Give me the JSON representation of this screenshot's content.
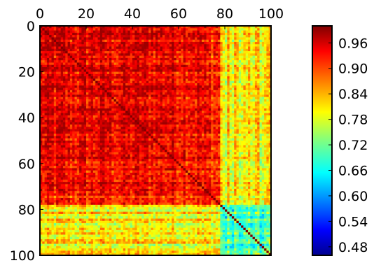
{
  "chart_data": {
    "type": "heatmap",
    "title": "",
    "xlabel": "",
    "ylabel": "",
    "x_range": [
      0,
      100
    ],
    "y_range": [
      0,
      100
    ],
    "x_tick_labels": [
      "0",
      "20",
      "40",
      "60",
      "80",
      "100"
    ],
    "x_tick_values": [
      0,
      20,
      40,
      60,
      80,
      100
    ],
    "y_tick_labels": [
      "0",
      "20",
      "40",
      "60",
      "80",
      "100"
    ],
    "y_tick_values": [
      0,
      20,
      40,
      60,
      80,
      100
    ],
    "x_axis_position": "top",
    "y_axis_inverted": true,
    "matrix_size": 100,
    "diagonal_value": 1.0,
    "value_range": [
      0.46,
      1.0
    ],
    "colormap": "jet",
    "colorbar": {
      "position": "right",
      "tick_labels": [
        "0.96",
        "0.90",
        "0.84",
        "0.78",
        "0.72",
        "0.66",
        "0.60",
        "0.54",
        "0.48"
      ],
      "tick_values": [
        0.96,
        0.9,
        0.84,
        0.78,
        0.72,
        0.66,
        0.6,
        0.54,
        0.48
      ]
    },
    "grid": false,
    "legend": "none",
    "note_values": "symmetric correlation-like matrix; mostly 0.78-0.92 in upper-left block, lower (0.60-0.75) for indices 80-100; diagonal 1.0"
  }
}
